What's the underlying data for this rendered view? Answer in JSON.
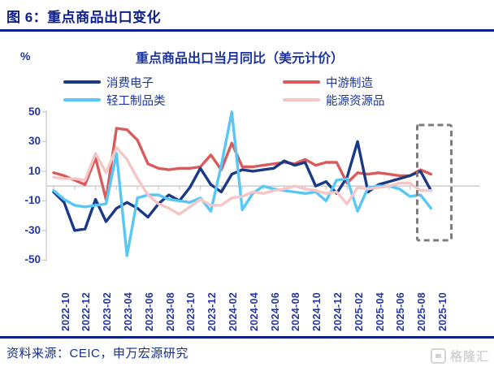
{
  "header": {
    "title": "图 6：重点商品出口变化"
  },
  "chart": {
    "unit_label": "%",
    "title": "重点商品出口当月同比（美元计价）"
  },
  "source": {
    "text": "资料来源：CEIC，申万宏源研究"
  },
  "watermark": {
    "text": "格隆汇"
  },
  "colors": {
    "header_navy": "#10208a",
    "text_navy": "#1d35a0",
    "axis_gray": "#c9c9c9",
    "highlight_box_gray": "#7d7d7d",
    "watermark_gray": "#d4d4d4"
  },
  "chart_data": {
    "type": "line",
    "title": "重点商品出口当月同比（美元计价）",
    "ylabel": "%",
    "ylim": [
      -50,
      50
    ],
    "y_ticks": [
      50,
      30,
      10,
      -10,
      -30,
      -50
    ],
    "grid": "zero-axis-only",
    "legend_position": "top",
    "x_tick_labels": [
      "2022-10",
      "2022-12",
      "2023-02",
      "2023-04",
      "2023-06",
      "2023-08",
      "2023-10",
      "2023-12",
      "2024-02",
      "2024-04",
      "2024-06",
      "2024-08",
      "2024-10",
      "2024-12",
      "2025-02",
      "2025-04",
      "2025-06",
      "2025-08",
      "2025-10"
    ],
    "categories": [
      "2022-10",
      "2022-11",
      "2022-12",
      "2023-01",
      "2023-02",
      "2023-03",
      "2023-04",
      "2023-05",
      "2023-06",
      "2023-07",
      "2023-08",
      "2023-09",
      "2023-10",
      "2023-11",
      "2023-12",
      "2024-01",
      "2024-02",
      "2024-03",
      "2024-04",
      "2024-05",
      "2024-06",
      "2024-07",
      "2024-08",
      "2024-09",
      "2024-10",
      "2024-11",
      "2024-12",
      "2025-01",
      "2025-02",
      "2025-03",
      "2025-04",
      "2025-05",
      "2025-06",
      "2025-07",
      "2025-08",
      "2025-09",
      "2025-10"
    ],
    "series": [
      {
        "key": "consumer-electronics",
        "name": "消费电子",
        "color": "#1b3a85",
        "values": [
          -4,
          -11,
          -30,
          -29,
          -9,
          -24,
          -15,
          -11,
          -15,
          -21,
          -12,
          -6,
          -10,
          -1,
          12,
          1,
          -4,
          8,
          11,
          10,
          11,
          12,
          17,
          14,
          16,
          0,
          3,
          -5,
          6,
          30,
          -4,
          1,
          3,
          5,
          7,
          10,
          -3
        ]
      },
      {
        "key": "midstream-manufacturing",
        "name": "中游制造",
        "color": "#d95c5c",
        "values": [
          9,
          7,
          4,
          1,
          19,
          -9,
          39,
          38,
          31,
          15,
          12,
          11,
          12,
          12,
          13,
          21,
          11,
          29,
          13,
          13,
          14,
          15,
          16,
          15,
          18,
          14,
          16,
          16,
          2,
          9,
          8,
          9,
          8,
          7,
          7,
          11,
          8
        ]
      },
      {
        "key": "light-industry",
        "name": "轻工制品类",
        "color": "#58c7f5",
        "values": [
          -3,
          -9,
          -13,
          -14,
          -13,
          -12,
          22,
          -47,
          -8,
          -6,
          -6,
          -9,
          -10,
          -11,
          -8,
          -17,
          14,
          50,
          -16,
          -5,
          0,
          -2,
          -3,
          -4,
          -5,
          -4,
          -10,
          4,
          5,
          -17,
          -1,
          0,
          0,
          -2,
          -7,
          -6,
          -15
        ]
      },
      {
        "key": "energy-resources",
        "name": "能源资源品",
        "color": "#f5c6c6",
        "values": [
          6,
          5,
          5,
          4,
          22,
          9,
          26,
          18,
          5,
          -6,
          -12,
          -15,
          -19,
          -14,
          -9,
          -13,
          -13,
          -8,
          -7,
          -4,
          -5,
          -3,
          -2,
          0,
          -2,
          -3,
          -5,
          -4,
          -12,
          -1,
          -2,
          -1,
          0,
          2,
          2,
          -3,
          -3
        ]
      }
    ],
    "draw_order": [
      1,
      0,
      2,
      3
    ],
    "highlight_box": {
      "months": [
        "2025-09",
        "2025-10"
      ]
    }
  }
}
